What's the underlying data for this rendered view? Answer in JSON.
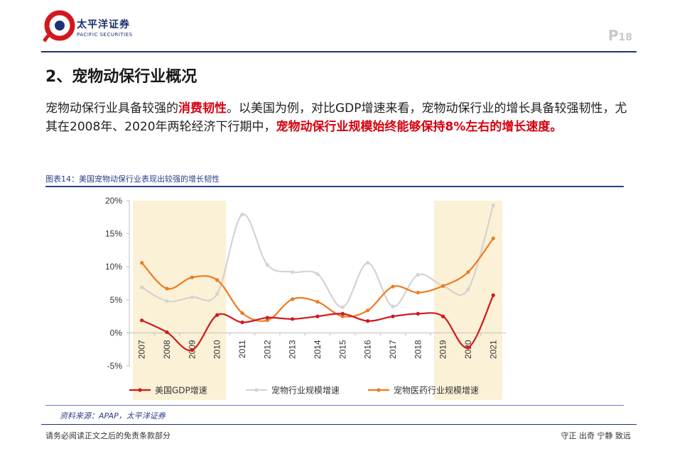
{
  "header": {
    "brand_cn": "太平洋证券",
    "brand_en": "PACIFIC SECURITIES",
    "page_prefix": "P",
    "page_number": "18"
  },
  "section_title": "2、宠物动保行业概况",
  "paragraph": {
    "p1": "宠物动保行业具备较强的",
    "h1": "消费韧性",
    "p2": "。以美国为例，对比GDP增速来看，宠物动保行业的增长具备较强韧性，尤其在2008年、2020年两轮经济下行期中，",
    "h2": "宠物动保行业规模始终能够保持8%左右的增长速度。"
  },
  "figure_title": "图表14：美国宠物动保行业表现出较强的增长韧性",
  "source": "资料来源：APAP，太平洋证券",
  "footer": {
    "left": "请务必阅读正文之后的免责条款部分",
    "right": "守正 出奇 宁静 致远"
  },
  "colors": {
    "navy": "#1d3278",
    "highlight_red": "#d6000f",
    "shade": "#fbf1d6"
  },
  "chart_data": {
    "type": "line",
    "x": [
      "2007",
      "2008",
      "2009",
      "2010",
      "2011",
      "2012",
      "2013",
      "2014",
      "2015",
      "2016",
      "2017",
      "2018",
      "2019",
      "2020",
      "2021"
    ],
    "ylim": [
      -5,
      20
    ],
    "yticks": [
      -5,
      0,
      5,
      10,
      15,
      20
    ],
    "ytick_labels": [
      "-5%",
      "0%",
      "5%",
      "10%",
      "15%",
      "20%"
    ],
    "shaded_ranges": [
      [
        "2007",
        "2010"
      ],
      [
        "2019",
        "2021"
      ]
    ],
    "legend_position": "bottom",
    "series": [
      {
        "name": "美国GDP增速",
        "color": "#d0181e",
        "values": [
          1.9,
          0.1,
          -2.6,
          2.7,
          1.6,
          2.3,
          2.1,
          2.5,
          2.9,
          1.8,
          2.5,
          2.9,
          2.5,
          -2.2,
          5.7
        ]
      },
      {
        "name": "宠物行业规模增速",
        "color": "#d3d3d3",
        "values": [
          6.9,
          4.8,
          5.4,
          5.9,
          17.9,
          10.3,
          9.2,
          8.9,
          3.9,
          10.6,
          4.0,
          8.8,
          7.1,
          6.6,
          19.3
        ]
      },
      {
        "name": "宠物医药行业规模增速",
        "color": "#ee7a22",
        "values": [
          10.6,
          6.7,
          8.4,
          8.0,
          3.0,
          1.9,
          5.1,
          4.7,
          2.5,
          3.4,
          7.0,
          6.1,
          7.1,
          9.2,
          14.3
        ]
      }
    ]
  }
}
